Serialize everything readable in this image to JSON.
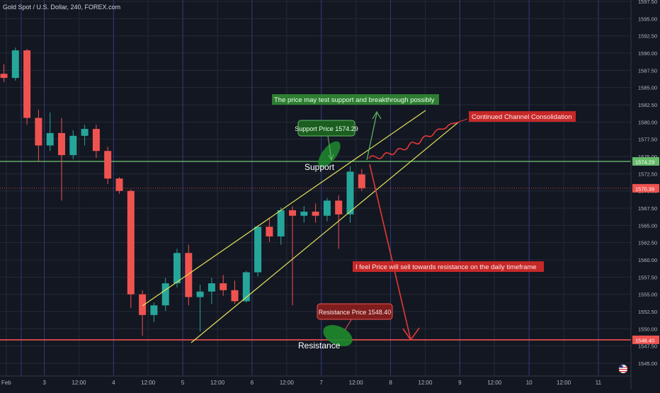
{
  "title": "Gold Spot / U.S. Dollar, 240, FOREX.com",
  "colors": {
    "background": "#131722",
    "grid": "#262a35",
    "up": "#26a69a",
    "down": "#ef5350",
    "channel": "#e3e35a",
    "support_line": "#66bb6a",
    "resistance_line": "#ef5350",
    "axis_text": "#b2b5be"
  },
  "chart_data": {
    "type": "candlestick",
    "symbol": "Gold Spot / U.S. Dollar",
    "timeframe": "240",
    "source": "FOREX.com",
    "ylim": [
      1543.5,
      1597.5
    ],
    "yticks": [
      "1597.50",
      "1595.00",
      "1592.50",
      "1590.00",
      "1587.50",
      "1585.00",
      "1582.50",
      "1580.00",
      "1577.50",
      "1575.00",
      "1572.50",
      "1570.00",
      "1567.50",
      "1565.00",
      "1562.50",
      "1560.00",
      "1557.50",
      "1555.00",
      "1552.50",
      "1550.00",
      "1547.50",
      "1545.00"
    ],
    "xticks": [
      {
        "i": 0.2,
        "label": "Feb"
      },
      {
        "i": 3.5,
        "label": "3"
      },
      {
        "i": 6.5,
        "label": "12:00"
      },
      {
        "i": 9.5,
        "label": "4"
      },
      {
        "i": 12.5,
        "label": "12:00"
      },
      {
        "i": 15.5,
        "label": "5"
      },
      {
        "i": 18.5,
        "label": "12:00"
      },
      {
        "i": 21.5,
        "label": "6"
      },
      {
        "i": 24.5,
        "label": "12:00"
      },
      {
        "i": 27.5,
        "label": "7"
      },
      {
        "i": 30.5,
        "label": "12:00"
      },
      {
        "i": 33.5,
        "label": "8"
      },
      {
        "i": 36.5,
        "label": "12:00"
      },
      {
        "i": 39.5,
        "label": "9"
      },
      {
        "i": 42.5,
        "label": "12:00"
      },
      {
        "i": 45.5,
        "label": "10"
      },
      {
        "i": 48.5,
        "label": "12:00"
      },
      {
        "i": 51.5,
        "label": "11"
      }
    ],
    "candles": [
      {
        "o": 1587.0,
        "h": 1588.4,
        "l": 1585.8,
        "c": 1586.4
      },
      {
        "o": 1586.4,
        "h": 1590.8,
        "l": 1586.0,
        "c": 1590.4
      },
      {
        "o": 1590.4,
        "h": 1590.6,
        "l": 1579.6,
        "c": 1580.6
      },
      {
        "o": 1580.6,
        "h": 1581.8,
        "l": 1574.2,
        "c": 1576.6
      },
      {
        "o": 1576.6,
        "h": 1581.4,
        "l": 1575.8,
        "c": 1578.4
      },
      {
        "o": 1578.4,
        "h": 1580.6,
        "l": 1568.6,
        "c": 1575.2
      },
      {
        "o": 1575.2,
        "h": 1578.8,
        "l": 1574.6,
        "c": 1578.0
      },
      {
        "o": 1578.0,
        "h": 1579.6,
        "l": 1576.6,
        "c": 1579.0
      },
      {
        "o": 1579.0,
        "h": 1579.6,
        "l": 1574.8,
        "c": 1575.8
      },
      {
        "o": 1575.8,
        "h": 1576.4,
        "l": 1571.0,
        "c": 1571.8
      },
      {
        "o": 1571.8,
        "h": 1572.0,
        "l": 1569.6,
        "c": 1570.0
      },
      {
        "o": 1570.0,
        "h": 1570.2,
        "l": 1553.0,
        "c": 1555.0
      },
      {
        "o": 1555.0,
        "h": 1555.6,
        "l": 1549.0,
        "c": 1552.0
      },
      {
        "o": 1552.0,
        "h": 1553.8,
        "l": 1551.0,
        "c": 1553.4
      },
      {
        "o": 1553.4,
        "h": 1557.4,
        "l": 1552.6,
        "c": 1556.6
      },
      {
        "o": 1556.6,
        "h": 1561.6,
        "l": 1556.0,
        "c": 1561.0
      },
      {
        "o": 1561.0,
        "h": 1562.2,
        "l": 1553.4,
        "c": 1554.6
      },
      {
        "o": 1554.6,
        "h": 1556.4,
        "l": 1549.6,
        "c": 1555.4
      },
      {
        "o": 1555.4,
        "h": 1557.4,
        "l": 1553.6,
        "c": 1556.6
      },
      {
        "o": 1556.6,
        "h": 1557.8,
        "l": 1554.8,
        "c": 1555.6
      },
      {
        "o": 1555.6,
        "h": 1557.0,
        "l": 1553.6,
        "c": 1554.0
      },
      {
        "o": 1554.0,
        "h": 1558.4,
        "l": 1553.8,
        "c": 1558.2
      },
      {
        "o": 1558.2,
        "h": 1565.0,
        "l": 1557.6,
        "c": 1564.8
      },
      {
        "o": 1564.8,
        "h": 1566.0,
        "l": 1562.6,
        "c": 1563.4
      },
      {
        "o": 1563.4,
        "h": 1567.6,
        "l": 1562.2,
        "c": 1567.2
      },
      {
        "o": 1567.2,
        "h": 1567.8,
        "l": 1553.4,
        "c": 1566.4
      },
      {
        "o": 1566.4,
        "h": 1567.8,
        "l": 1565.4,
        "c": 1567.0
      },
      {
        "o": 1567.0,
        "h": 1568.2,
        "l": 1565.4,
        "c": 1566.4
      },
      {
        "o": 1566.4,
        "h": 1569.0,
        "l": 1565.6,
        "c": 1568.6
      },
      {
        "o": 1568.6,
        "h": 1569.4,
        "l": 1561.6,
        "c": 1566.6
      },
      {
        "o": 1566.6,
        "h": 1573.6,
        "l": 1565.4,
        "c": 1572.8
      },
      {
        "o": 1572.4,
        "h": 1573.2,
        "l": 1570.0,
        "c": 1570.4
      }
    ],
    "price_labels": [
      {
        "price": 1574.29,
        "label": "1574.29",
        "role": "support"
      },
      {
        "price": 1570.39,
        "label": "1570.39",
        "role": "last"
      },
      {
        "price": 1548.4,
        "label": "1548.40",
        "role": "resistance"
      }
    ]
  },
  "annotations": {
    "support_callout": "Support Price 1574.29",
    "support_label": "Support",
    "resistance_callout": "Resistance Price 1548.40",
    "resistance_label": "Resistance",
    "breakout_note": "The price may test support and breakthrough possibly",
    "consolidation_note": "Continued Channel Consolidation",
    "sell_note": "I feel Price will sell towards resistance on the daily timeframe"
  },
  "flag_icon": "us-flag-icon"
}
